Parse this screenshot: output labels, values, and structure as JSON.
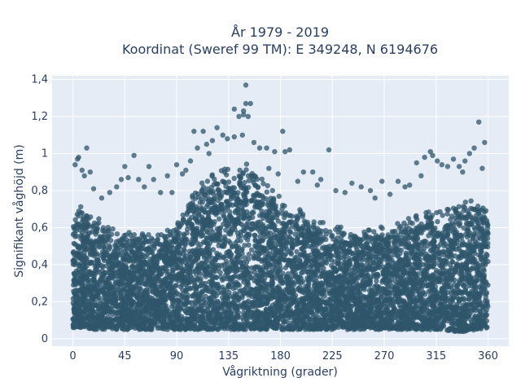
{
  "chart_data": {
    "type": "scatter",
    "title_line1": "År 1979 - 2019",
    "title_line2": "Koordinat (Sweref 99 TM): E 349248, N 6194676",
    "xlabel": "Vågriktning (grader)",
    "ylabel": "Signifikant våghöjd (m)",
    "xlim": [
      -18,
      378
    ],
    "ylim": [
      -0.04,
      1.42
    ],
    "xticks": [
      0,
      45,
      90,
      135,
      180,
      225,
      270,
      315,
      360
    ],
    "xtick_labels": [
      "0",
      "45",
      "90",
      "135",
      "180",
      "225",
      "270",
      "315",
      "360"
    ],
    "yticks": [
      0,
      0.2,
      0.4,
      0.6,
      0.8,
      1.0,
      1.2,
      1.4
    ],
    "ytick_labels": [
      "0",
      "0,2",
      "0,4",
      "0,6",
      "0,8",
      "1",
      "1,2",
      "1,4"
    ],
    "grid": true,
    "legend": "none",
    "marker_color": "#2f566b",
    "background_color": "#e5ecf6",
    "envelope_x": [
      0,
      10,
      20,
      30,
      40,
      50,
      60,
      70,
      80,
      90,
      100,
      110,
      120,
      130,
      140,
      150,
      160,
      170,
      180,
      190,
      200,
      210,
      220,
      230,
      240,
      250,
      260,
      270,
      280,
      290,
      300,
      310,
      320,
      330,
      340,
      350,
      360
    ],
    "envelope_top": [
      0.74,
      0.72,
      0.66,
      0.62,
      0.6,
      0.58,
      0.6,
      0.58,
      0.6,
      0.62,
      0.76,
      0.84,
      0.9,
      0.94,
      0.97,
      0.98,
      0.94,
      0.86,
      0.78,
      0.74,
      0.7,
      0.66,
      0.64,
      0.62,
      0.6,
      0.6,
      0.6,
      0.62,
      0.64,
      0.66,
      0.68,
      0.7,
      0.72,
      0.74,
      0.76,
      0.74,
      0.74
    ],
    "envelope_bottom": [
      0.06,
      0.06,
      0.05,
      0.05,
      0.05,
      0.05,
      0.05,
      0.05,
      0.05,
      0.05,
      0.05,
      0.05,
      0.05,
      0.05,
      0.05,
      0.05,
      0.05,
      0.05,
      0.05,
      0.05,
      0.05,
      0.05,
      0.05,
      0.05,
      0.05,
      0.05,
      0.05,
      0.05,
      0.05,
      0.05,
      0.05,
      0.05,
      0.05,
      0.04,
      0.04,
      0.05,
      0.06
    ],
    "outliers": [
      [
        150,
        1.37
      ],
      [
        140,
        1.24
      ],
      [
        148,
        1.23
      ],
      [
        154,
        1.27
      ],
      [
        150,
        1.27
      ],
      [
        148,
        1.21
      ],
      [
        144,
        1.2
      ],
      [
        152,
        1.2
      ],
      [
        125,
        1.14
      ],
      [
        105,
        1.12
      ],
      [
        113,
        1.12
      ],
      [
        130,
        1.1
      ],
      [
        134,
        1.08
      ],
      [
        140,
        1.09
      ],
      [
        147,
        1.1
      ],
      [
        157,
        1.06
      ],
      [
        162,
        1.03
      ],
      [
        168,
        1.03
      ],
      [
        175,
        1.01
      ],
      [
        182,
        1.12
      ],
      [
        184,
        1.01
      ],
      [
        188,
        1.02
      ],
      [
        200,
        0.9
      ],
      [
        208,
        0.9
      ],
      [
        222,
        1.02
      ],
      [
        228,
        0.8
      ],
      [
        242,
        0.84
      ],
      [
        250,
        0.82
      ],
      [
        258,
        0.8
      ],
      [
        268,
        0.85
      ],
      [
        275,
        0.78
      ],
      [
        282,
        0.85
      ],
      [
        288,
        0.82
      ],
      [
        298,
        0.95
      ],
      [
        305,
        0.98
      ],
      [
        310,
        1.01
      ],
      [
        312,
        0.99
      ],
      [
        316,
        0.96
      ],
      [
        320,
        0.94
      ],
      [
        325,
        0.93
      ],
      [
        330,
        0.97
      ],
      [
        335,
        0.93
      ],
      [
        340,
        0.96
      ],
      [
        344,
        1.0
      ],
      [
        348,
        1.03
      ],
      [
        352,
        1.17
      ],
      [
        357,
        1.06
      ],
      [
        355,
        0.92
      ],
      [
        10,
        0.88
      ],
      [
        12,
        1.03
      ],
      [
        4,
        0.97
      ],
      [
        5,
        0.98
      ],
      [
        2,
        0.94
      ],
      [
        8,
        0.91
      ],
      [
        15,
        0.9
      ],
      [
        18,
        0.81
      ],
      [
        25,
        0.76
      ],
      [
        32,
        0.79
      ],
      [
        38,
        0.82
      ],
      [
        42,
        0.86
      ],
      [
        45,
        0.93
      ],
      [
        48,
        0.87
      ],
      [
        53,
        0.99
      ],
      [
        57,
        0.86
      ],
      [
        62,
        0.82
      ],
      [
        66,
        0.93
      ],
      [
        70,
        0.86
      ],
      [
        76,
        0.79
      ],
      [
        82,
        0.88
      ],
      [
        86,
        0.79
      ],
      [
        90,
        0.94
      ],
      [
        95,
        0.89
      ],
      [
        98,
        0.91
      ],
      [
        102,
        0.96
      ],
      [
        108,
        1.03
      ],
      [
        116,
        1.05
      ],
      [
        118,
        1.0
      ],
      [
        121,
        1.07
      ],
      [
        170,
        0.92
      ],
      [
        178,
        0.89
      ],
      [
        195,
        0.85
      ],
      [
        212,
        0.83
      ],
      [
        215,
        0.86
      ],
      [
        236,
        0.79
      ],
      [
        262,
        0.76
      ],
      [
        292,
        0.83
      ],
      [
        302,
        0.88
      ],
      [
        338,
        0.9
      ]
    ]
  }
}
